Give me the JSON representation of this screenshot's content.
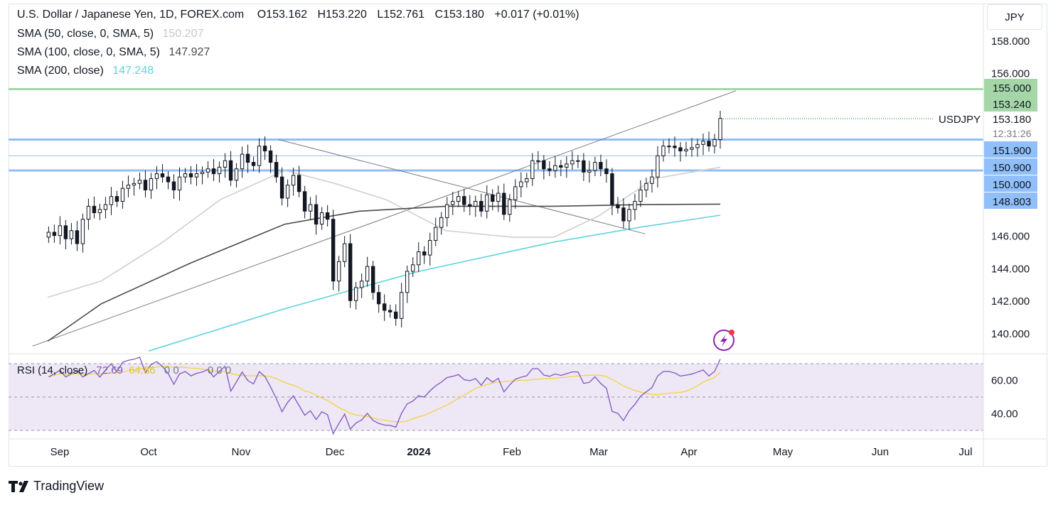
{
  "header": {
    "symbol_title": "U.S. Dollar / Japanese Yen, 1D, FOREX.com",
    "open_label": "O",
    "open": "153.162",
    "high_label": "H",
    "high": "153.220",
    "low_label": "L",
    "low": "152.761",
    "close_label": "C",
    "close": "153.180",
    "change": "+0.017 (+0.01%)"
  },
  "indicators": [
    {
      "label": "SMA (50, close, 0, SMA, 5)",
      "value": "150.207",
      "color": "#c8c8c8"
    },
    {
      "label": "SMA (100, close, 0, SMA, 5)",
      "value": "147.927",
      "color": "#4a4a4a"
    },
    {
      "label": "SMA (200, close)",
      "value": "147.248",
      "color": "#5fd3df"
    }
  ],
  "rsi": {
    "label": "RSI (14, close)",
    "value": "72.69",
    "ma_value": "64.86",
    "extras": "0  0",
    "extras2": "0  0  0"
  },
  "currency_button": "JPY",
  "symbol_tag": "USDJPY",
  "countdown": "12:31:26",
  "price_axis_ticks": [
    "158.000",
    "156.000",
    "146.000",
    "144.000",
    "142.000",
    "140.000"
  ],
  "price_labels": [
    {
      "text": "155.000",
      "bg": "#a5d6a7"
    },
    {
      "text": "153.240",
      "bg": "#a5d6a7"
    },
    {
      "text": "151.900",
      "bg": "#90bff9"
    },
    {
      "text": "150.900",
      "bg": "#90bff9"
    },
    {
      "text": "150.000",
      "bg": "#90bff9"
    },
    {
      "text": "148.803",
      "bg": "#90bff9"
    }
  ],
  "current_price": "153.180",
  "rsi_axis_ticks": [
    "60.00",
    "40.00"
  ],
  "time_axis": [
    "Sep",
    "Oct",
    "Nov",
    "Dec",
    "2024",
    "Feb",
    "Mar",
    "Apr",
    "May",
    "Jun",
    "Jul"
  ],
  "brand": "TradingView",
  "colors": {
    "candle": "#131722",
    "support": "#90bff9",
    "resistance": "#a5d6a7",
    "rsi_line": "#7e57c2",
    "rsi_ma": "#f6d43b",
    "rsi_band": "#ede7f6"
  },
  "chart_data": {
    "type": "candlestick",
    "title": "U.S. Dollar / Japanese Yen, 1D, FOREX.com",
    "price_range": [
      139,
      159
    ],
    "horizontal_levels": [
      155.0,
      151.9,
      150.9,
      150.0
    ],
    "series": [
      {
        "name": "SMA (50, close, 0, SMA, 5)",
        "points": [
          [
            "2023-08-20",
            142.2
          ],
          [
            "2023-09-15",
            143.2
          ],
          [
            "2023-10-05",
            145.5
          ],
          [
            "2023-10-25",
            148.2
          ],
          [
            "2023-11-15",
            150.0
          ],
          [
            "2023-12-01",
            149.2
          ],
          [
            "2023-12-20",
            148.2
          ],
          [
            "2024-01-10",
            146.3
          ],
          [
            "2024-02-01",
            145.9
          ],
          [
            "2024-02-15",
            145.9
          ],
          [
            "2024-03-01",
            147.2
          ],
          [
            "2024-03-20",
            149.5
          ],
          [
            "2024-04-11",
            150.2
          ]
        ]
      },
      {
        "name": "SMA (100, close, 0, SMA, 5)",
        "points": [
          [
            "2023-08-20",
            139.5
          ],
          [
            "2023-09-15",
            141.8
          ],
          [
            "2023-10-15",
            144.3
          ],
          [
            "2023-11-15",
            146.7
          ],
          [
            "2023-12-10",
            147.5
          ],
          [
            "2024-01-10",
            147.8
          ],
          [
            "2024-02-15",
            147.8
          ],
          [
            "2024-03-15",
            147.9
          ],
          [
            "2024-04-11",
            147.93
          ]
        ]
      },
      {
        "name": "SMA (200, close)",
        "points": [
          [
            "2023-10-01",
            138.9
          ],
          [
            "2023-11-15",
            141.5
          ],
          [
            "2024-01-01",
            143.8
          ],
          [
            "2024-02-15",
            145.6
          ],
          [
            "2024-03-15",
            146.5
          ],
          [
            "2024-04-11",
            147.25
          ]
        ]
      }
    ],
    "candles_close": [
      146.2,
      146.0,
      146.6,
      145.8,
      146.3,
      145.5,
      147.0,
      147.8,
      147.4,
      147.6,
      147.9,
      148.4,
      148.1,
      148.9,
      149.1,
      149.2,
      149.4,
      148.8,
      149.5,
      149.8,
      149.6,
      149.3,
      148.8,
      149.6,
      149.8,
      149.6,
      149.8,
      149.9,
      150.1,
      149.8,
      150.2,
      150.6,
      149.4,
      150.1,
      151.0,
      150.5,
      150.3,
      151.5,
      151.2,
      150.5,
      149.6,
      148.3,
      149.1,
      149.7,
      148.7,
      147.5,
      147.9,
      146.7,
      147.4,
      147.0,
      143.2,
      144.4,
      145.5,
      142.0,
      142.8,
      143.2,
      144.1,
      142.5,
      141.8,
      141.4,
      141.3,
      140.9,
      142.5,
      143.8,
      144.2,
      145.0,
      144.8,
      145.7,
      146.5,
      147.1,
      147.9,
      148.1,
      148.4,
      147.9,
      147.8,
      148.1,
      147.5,
      148.5,
      148.1,
      148.6,
      147.3,
      148.2,
      149.0,
      149.3,
      149.5,
      150.6,
      150.6,
      150.1,
      150.0,
      150.3,
      150.2,
      150.4,
      150.6,
      150.6,
      149.9,
      150.0,
      150.5,
      150.1,
      149.8,
      147.9,
      147.7,
      146.9,
      147.6,
      148.1,
      148.8,
      149.2,
      149.6,
      150.9,
      151.5,
      151.5,
      151.4,
      151.2,
      151.3,
      151.4,
      151.6,
      151.8,
      151.5,
      151.9,
      153.2
    ],
    "rsi": {
      "range": [
        25,
        75
      ],
      "upper": 70,
      "lower": 30,
      "value": 72.69,
      "ma": 64.86
    }
  }
}
